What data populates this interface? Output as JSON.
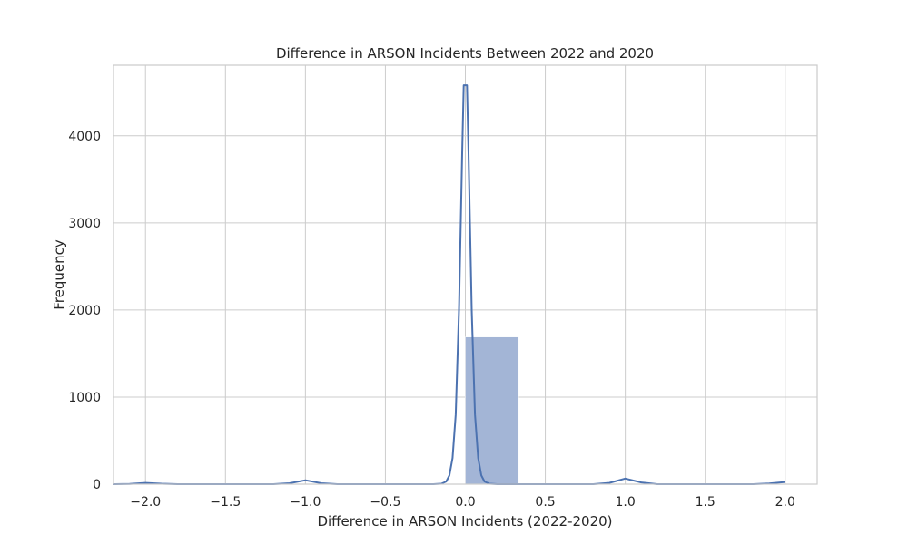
{
  "chart_data": {
    "type": "bar",
    "title": "Difference in ARSON Incidents Between 2022 and 2020",
    "xlabel": "Difference in ARSON Incidents (2022-2020)",
    "ylabel": "Frequency",
    "xlim": [
      -2.2,
      2.2
    ],
    "ylim": [
      0,
      4810
    ],
    "x_ticks": [
      -2.0,
      -1.5,
      -1.0,
      -0.5,
      0.0,
      0.5,
      1.0,
      1.5,
      2.0
    ],
    "x_tick_labels": [
      "−2.0",
      "−1.5",
      "−1.0",
      "−0.5",
      "0.0",
      "0.5",
      "1.0",
      "1.5",
      "2.0"
    ],
    "y_ticks": [
      0,
      1000,
      2000,
      3000,
      4000
    ],
    "y_tick_labels": [
      "0",
      "1000",
      "2000",
      "3000",
      "4000"
    ],
    "grid": true,
    "legend": "none",
    "colors": {
      "bar": "#a3b5d6",
      "kde": "#4c72b0",
      "grid": "#cccccc",
      "axes": "#cccccc"
    },
    "histogram": {
      "bins": [
        {
          "x0": 0.0,
          "x1": 0.333,
          "count": 1690
        }
      ]
    },
    "kde": {
      "x": [
        -2.2,
        -2.1,
        -2.0,
        -1.9,
        -1.8,
        -1.5,
        -1.2,
        -1.1,
        -1.0,
        -0.9,
        -0.8,
        -0.5,
        -0.3,
        -0.2,
        -0.15,
        -0.12,
        -0.1,
        -0.08,
        -0.06,
        -0.04,
        -0.02,
        -0.01,
        0.0,
        0.01,
        0.02,
        0.04,
        0.06,
        0.08,
        0.1,
        0.12,
        0.15,
        0.2,
        0.3,
        0.5,
        0.8,
        0.9,
        1.0,
        1.1,
        1.2,
        1.5,
        1.8,
        1.9,
        2.0
      ],
      "y": [
        0,
        2,
        15,
        5,
        0,
        0,
        0,
        10,
        45,
        10,
        0,
        0,
        0,
        0,
        5,
        30,
        100,
        300,
        800,
        2000,
        3800,
        4580,
        4580,
        4580,
        3800,
        2000,
        800,
        300,
        100,
        30,
        5,
        0,
        0,
        0,
        0,
        15,
        65,
        20,
        0,
        0,
        0,
        8,
        25
      ]
    }
  }
}
